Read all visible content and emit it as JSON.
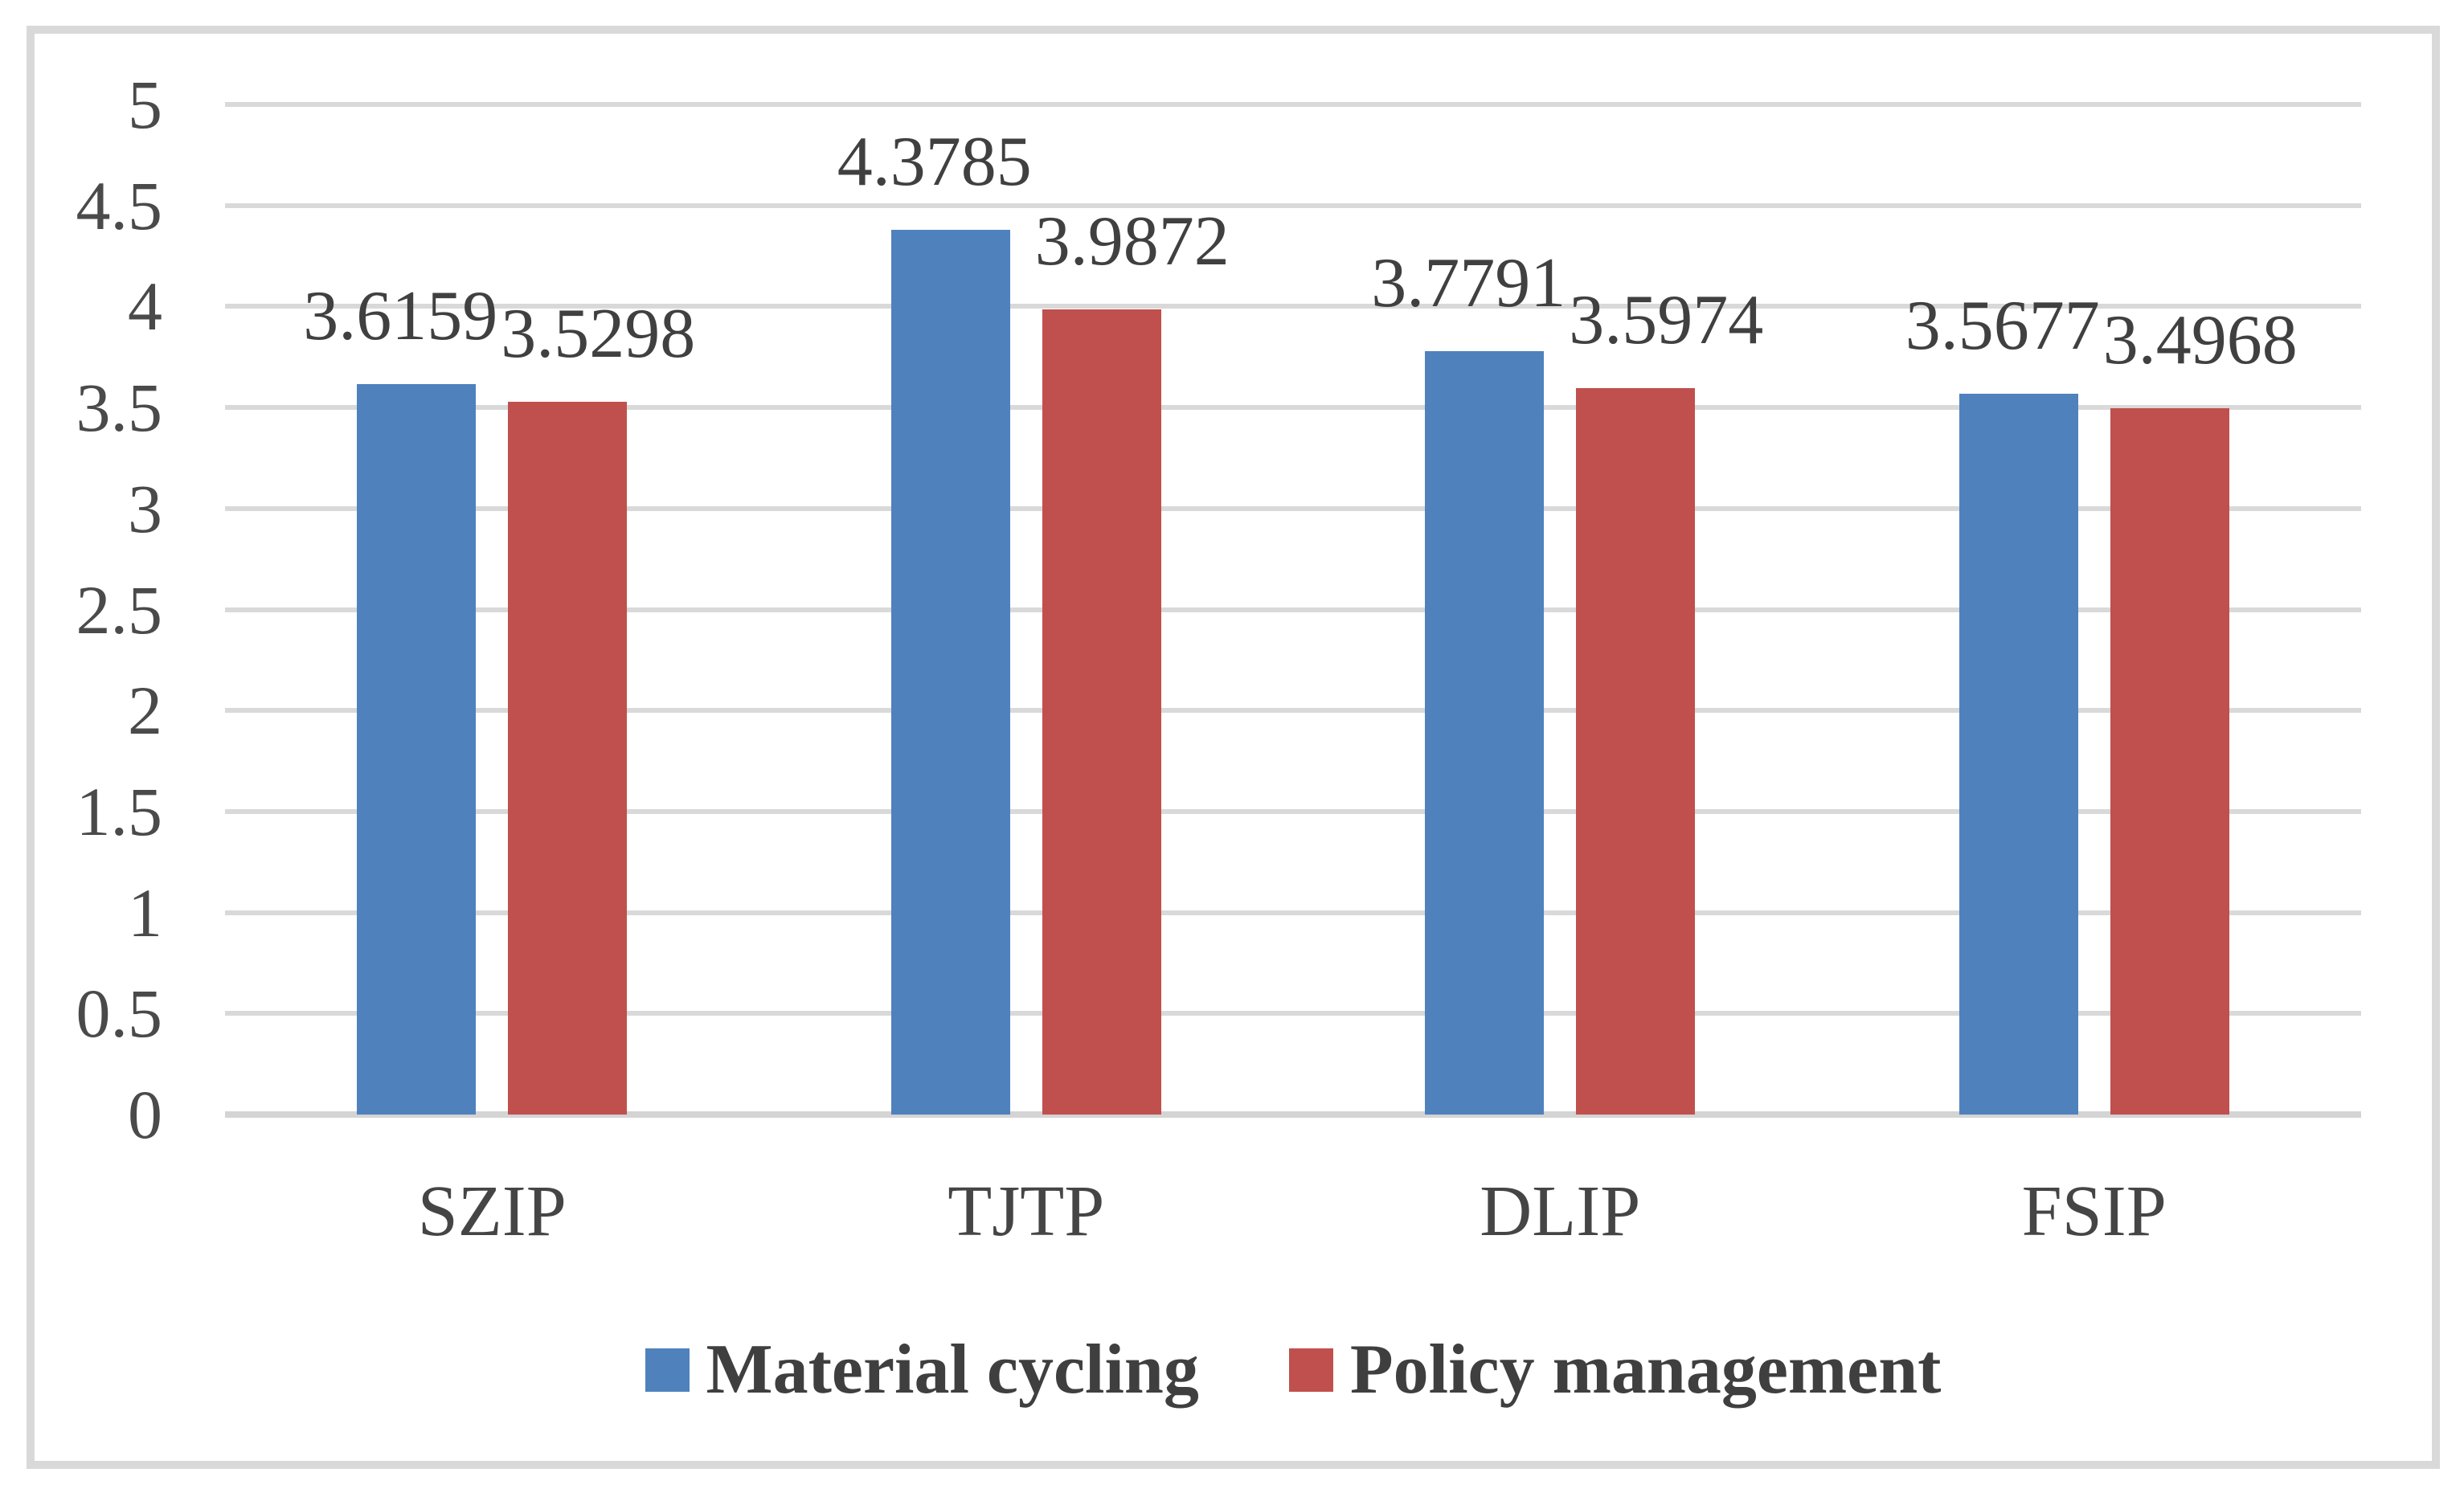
{
  "chart_data": {
    "type": "bar",
    "title": "",
    "xlabel": "",
    "ylabel": "",
    "categories": [
      "SZIP",
      "TJTP",
      "DLIP",
      "FSIP"
    ],
    "series": [
      {
        "name": "Material cycling",
        "color": "#4F81BD",
        "values": [
          3.6159,
          4.3785,
          3.7791,
          3.5677
        ],
        "labels": [
          "3.6159",
          "4.3785",
          "3.7791",
          "3.5677"
        ]
      },
      {
        "name": "Policy management",
        "color": "#C0504D",
        "values": [
          3.5298,
          3.9872,
          3.5974,
          3.4968
        ],
        "labels": [
          "3.5298",
          "3.9872",
          "3.5974",
          "3.4968"
        ]
      }
    ],
    "ylim": [
      0,
      5
    ],
    "ytick_step": 0.5,
    "yticks": [
      "0",
      "0.5",
      "1",
      "1.5",
      "2",
      "2.5",
      "3",
      "3.5",
      "4",
      "4.5",
      "5"
    ],
    "grid": true,
    "legend_position": "bottom",
    "colors": {
      "gridline": "#D9D9D9",
      "frame_border": "#D9D9D9",
      "tick_text": "#4A4A4A",
      "label_text": "#404040"
    }
  }
}
